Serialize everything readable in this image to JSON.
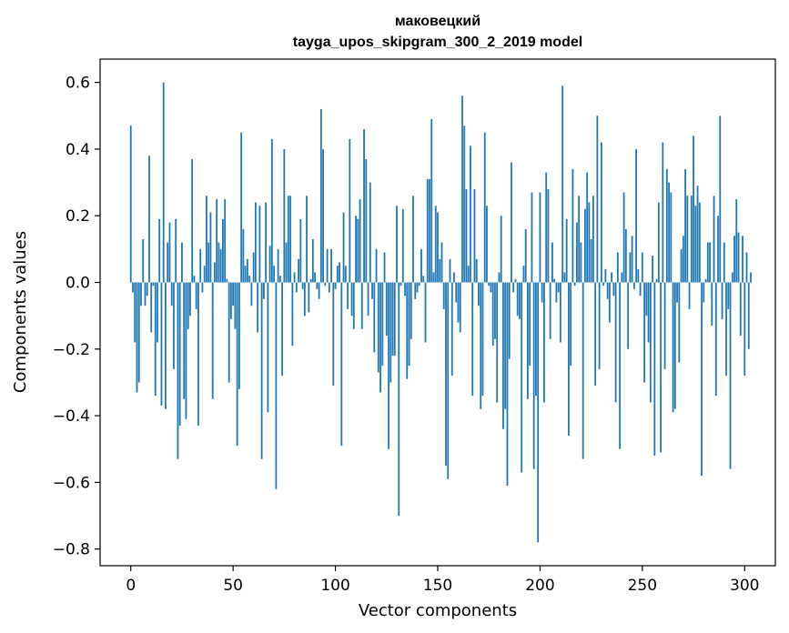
{
  "chart_data": {
    "type": "bar",
    "title_line1": "маковецкий",
    "title_line2": "tayga_upos_skipgram_300_2_2019 model",
    "xlabel": "Vector components",
    "ylabel": "Components values",
    "xlim": [
      -15,
      315
    ],
    "ylim": [
      -0.85,
      0.67
    ],
    "x_ticks": [
      0,
      50,
      100,
      150,
      200,
      250,
      300
    ],
    "x_tick_labels": [
      "0",
      "50",
      "100",
      "150",
      "200",
      "250",
      "300"
    ],
    "y_ticks": [
      0.6,
      0.4,
      0.2,
      0.0,
      -0.2,
      -0.4,
      -0.6,
      -0.8
    ],
    "y_tick_labels": [
      "0.6",
      "0.4",
      "0.2",
      "0.0",
      "−0.2",
      "−0.4",
      "−0.6",
      "−0.8"
    ],
    "bar_color": "#1f77b4",
    "values": [
      0.47,
      -0.03,
      -0.18,
      -0.33,
      -0.3,
      -0.07,
      0.13,
      -0.07,
      -0.04,
      0.38,
      -0.15,
      -0.01,
      -0.34,
      -0.18,
      0.19,
      -0.37,
      0.6,
      -0.38,
      0.12,
      0.18,
      -0.07,
      -0.26,
      0.19,
      -0.53,
      -0.43,
      0.12,
      -0.35,
      -0.41,
      -0.14,
      -0.1,
      0.37,
      0.02,
      -0.08,
      -0.43,
      0.1,
      -0.03,
      0.05,
      0.26,
      0.12,
      0.21,
      -0.35,
      0.06,
      0.25,
      0.12,
      0.1,
      0.19,
      0.25,
      0.01,
      -0.3,
      -0.11,
      -0.07,
      -0.14,
      -0.49,
      -0.32,
      0.45,
      0.16,
      0.05,
      0.07,
      0.02,
      -0.07,
      0.09,
      0.24,
      -0.15,
      0.23,
      -0.53,
      -0.05,
      0.24,
      -0.39,
      0.11,
      0.43,
      0.05,
      -0.62,
      0.1,
      0.02,
      -0.28,
      0.4,
      0.12,
      0.26,
      0.26,
      -0.19,
      0.03,
      -0.03,
      0.07,
      0.19,
      -0.02,
      -0.1,
      0.26,
      -0.09,
      0.01,
      0.13,
      0.03,
      -0.02,
      -0.05,
      0.52,
      0.4,
      -0.01,
      0.1,
      -0.03,
      0.1,
      -0.31,
      -0.02,
      0.05,
      0.06,
      -0.49,
      0.21,
      0.05,
      -0.08,
      0.43,
      -0.1,
      -0.14,
      0.2,
      0.19,
      0.25,
      -0.14,
      0.46,
      0.37,
      -0.1,
      0.3,
      -0.05,
      -0.21,
      0.1,
      -0.27,
      -0.33,
      -0.25,
      0.09,
      -0.16,
      -0.5,
      -0.3,
      -0.22,
      -0.22,
      0.23,
      -0.7,
      -0.01,
      0.22,
      -0.04,
      -0.29,
      -0.25,
      -0.17,
      0.26,
      -0.05,
      -0.03,
      -0.01,
      0.1,
      0.02,
      -0.18,
      0.31,
      0.31,
      0.49,
      0.03,
      0.23,
      0.21,
      0.07,
      0.12,
      -0.08,
      -0.55,
      -0.59,
      0.07,
      -0.28,
      0.03,
      -0.06,
      -0.12,
      -0.15,
      0.56,
      0.47,
      0.28,
      0.05,
      0.41,
      -0.34,
      0.28,
      0.07,
      -0.07,
      -0.38,
      -0.34,
      0.45,
      0.23,
      -0.01,
      -0.03,
      -0.19,
      -0.17,
      -0.36,
      0.03,
      0.2,
      -0.44,
      -0.38,
      -0.61,
      -0.23,
      0.36,
      -0.03,
      0.01,
      -0.1,
      -0.11,
      -0.57,
      0.05,
      0.16,
      -0.35,
      -0.25,
      0.27,
      -0.56,
      -0.34,
      -0.78,
      0.27,
      -0.06,
      -0.36,
      0.33,
      0.28,
      -0.17,
      0.12,
      0.01,
      -0.06,
      -0.03,
      -0.18,
      0.59,
      0.03,
      0.19,
      -0.46,
      -0.25,
      0.34,
      -0.01,
      0.18,
      0.26,
      0.12,
      -0.53,
      0.22,
      0.33,
      0.24,
      0.13,
      0.26,
      -0.31,
      0.5,
      -0.26,
      0.42,
      -0.01,
      0.04,
      -0.05,
      -0.12,
      0.03,
      -0.04,
      -0.36,
      0.09,
      -0.5,
      0.03,
      0.27,
      0.16,
      -0.2,
      0.09,
      0.14,
      -0.02,
      0.4,
      0.04,
      -0.04,
      0.09,
      -0.3,
      -0.1,
      -0.18,
      -0.36,
      0.08,
      -0.52,
      0.01,
      0.24,
      -0.51,
      0.42,
      -0.26,
      0.34,
      0.3,
      0.27,
      -0.39,
      -0.38,
      -0.06,
      -0.24,
      0.1,
      0.14,
      0.34,
      0.26,
      -0.08,
      0.26,
      0.44,
      0.23,
      0.29,
      0.24,
      -0.58,
      -0.06,
      0.01,
      0.12,
      0.12,
      -0.13,
      0.26,
      -0.34,
      0.2,
      0.5,
      -0.11,
      0.12,
      -0.28,
      -0.08,
      -0.56,
      0.03,
      0.14,
      0.25,
      0.15,
      -0.16,
      0.14,
      -0.28,
      0.09,
      -0.2,
      0.03
    ]
  }
}
